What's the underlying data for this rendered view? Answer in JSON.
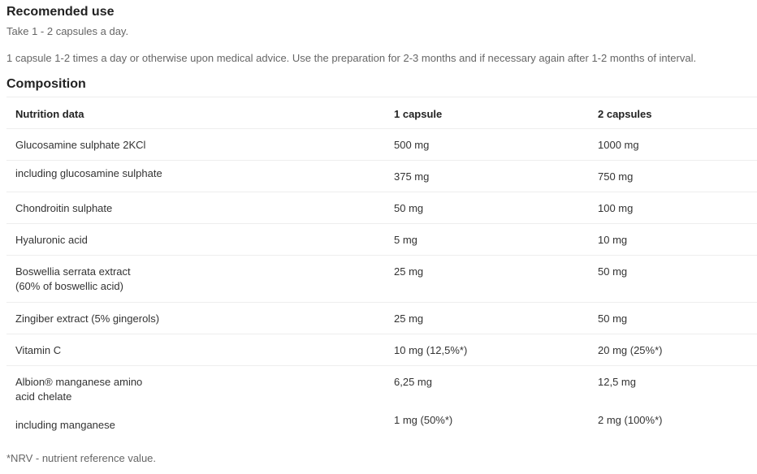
{
  "usage": {
    "title": "Recomended use",
    "line1": "Take 1 - 2 capsules a day.",
    "line2": "1 capsule 1-2 times a day or otherwise upon medical advice. Use the preparation for 2-3 months and if necessary again after 1-2 months of interval."
  },
  "composition": {
    "title": "Composition",
    "headers": [
      "Nutrition data",
      "1 capsule",
      "2 capsules"
    ],
    "rows": [
      {
        "name": "Glucosamine sulphate 2KCl",
        "one": "500 mg",
        "two": "1000 mg"
      },
      {
        "name": "including glucosamine sulphate",
        "one": "375 mg",
        "two": "750 mg"
      },
      {
        "name": "Chondroitin sulphate",
        "one": "50 mg",
        "two": "100 mg"
      },
      {
        "name": "Hyaluronic acid",
        "one": "5 mg",
        "two": "10 mg"
      },
      {
        "name": "Boswellia serrata extract",
        "name2": "(60% of boswellic acid)",
        "one": "25 mg",
        "two": "50 mg"
      },
      {
        "name": "Zingiber extract (5% gingerols)",
        "one": "25 mg",
        "two": "50 mg"
      },
      {
        "name": "Vitamin C",
        "one": "10 mg (12,5%*)",
        "two": "20 mg (25%*)"
      },
      {
        "name": "Albion® manganese amino",
        "name2": "acid chelate",
        "one": "6,25 mg",
        "two": "12,5 mg"
      },
      {
        "name": "including manganese",
        "one": "1 mg (50%*)",
        "two": "2 mg (100%*)"
      }
    ],
    "footnote": "*NRV - nutrient reference value."
  }
}
